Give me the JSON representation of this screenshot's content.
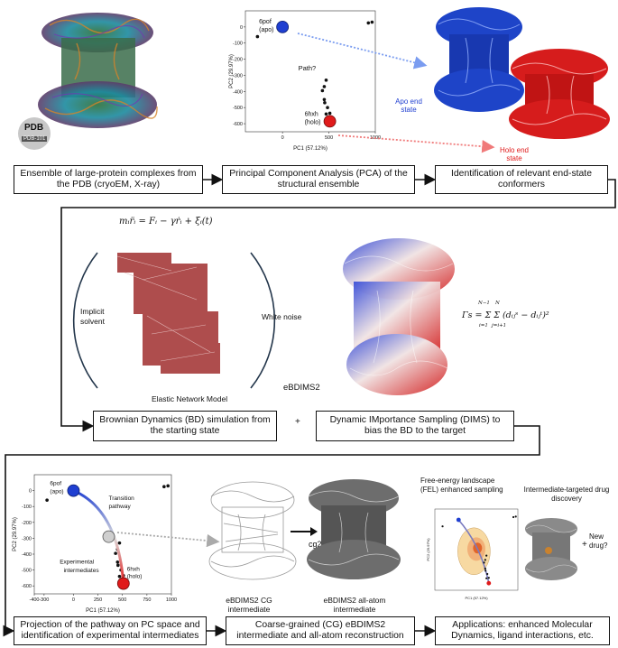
{
  "row1": {
    "box1": "Ensemble of large-protein complexes from the PDB (cryoEM, X-ray)",
    "box2": "Principal Component Analysis (PCA) of the structural ensemble",
    "box3": "Identification of relevant end-state conformers",
    "pdb_logo_top": "PDB",
    "pdb_logo_bottom": "PDB-101",
    "pca_xlabel": "PC1 (57.12%)",
    "pca_ylabel": "PC2 (29.97%)",
    "apo_label": "6pof (apo)",
    "holo_label": "6hxh (holo)",
    "path_label": "Path?",
    "apo_end": "Apo end state",
    "holo_end": "Holo end state"
  },
  "row2": {
    "equation1": "mᵢr̈ᵢ = Fᵢ − γṙᵢ + ξᵢ(t)",
    "implicit_solvent": "Implicit solvent",
    "white_noise": "White noise",
    "enm": "Elastic Network Model",
    "ebdims2": "eBDIMS2",
    "gamma_eq": "Γs = Σ Σ (dᵢⱼˢ − dᵢⱼᵗ)²",
    "sum_top1": "N−1",
    "sum_bot1": "i=1",
    "sum_top2": "N",
    "sum_bot2": "j=i+1",
    "box4": "Brownian Dynamics (BD) simulation from the starting state",
    "plus": "+",
    "box5": "Dynamic IMportance Sampling (DIMS) to bias the BD to the target"
  },
  "row3": {
    "apo_label": "6pof (apo)",
    "holo_label": "6hxh (holo)",
    "transition": "Transition pathway",
    "experimental": "Experimental intermediates",
    "xlabel": "PC1 (57.12%)",
    "ylabel": "PC2 (29.97%)",
    "cg_label": "eBDIMS2 CG intermediate",
    "aa_label": "eBDIMS2 all-atom intermediate",
    "cg2all": "cg2all",
    "fel_label": "Free-energy landscape (FEL) enhanced sampling",
    "drug_label": "Intermediate-targeted drug discovery",
    "plus": "+",
    "new_drug": "New drug?",
    "fel_xlabel": "PC1 (57.12%)",
    "fel_ylabel": "PC2 (29.97%)",
    "box6": "Projection of the pathway on PC space and identification of experimental intermediates",
    "box7": "Coarse-grained (CG) eBDIMS2 intermediate and all-atom reconstruction",
    "box8": "Applications: enhanced Molecular Dynamics, ligand interactions, etc."
  },
  "colors": {
    "apo": "#1f3fd1",
    "holo": "#e01b1b",
    "arrow_blue": "#7a9cf0",
    "arrow_red": "#f07a7a"
  },
  "chart_data": [
    {
      "type": "scatter",
      "name_ref": "top PCA",
      "xlabel": "PC1 (57.12%)",
      "ylabel": "PC2 (29.97%)",
      "xlim": [
        -400,
        1000
      ],
      "ylim": [
        -650,
        100
      ],
      "xticks": [
        -500,
        0,
        500,
        1000
      ],
      "yticks": [
        0,
        -100,
        -200,
        -300,
        -400,
        -500,
        -600
      ],
      "points": [
        [
          -270,
          -60
        ],
        [
          925,
          25
        ],
        [
          965,
          30
        ],
        [
          470,
          -330
        ],
        [
          450,
          -370
        ],
        [
          430,
          -395
        ],
        [
          450,
          -450
        ],
        [
          455,
          -470
        ],
        [
          485,
          -500
        ],
        [
          510,
          -535
        ],
        [
          470,
          -540
        ]
      ],
      "apo": [
        0,
        0
      ],
      "holo": [
        510,
        -585
      ]
    },
    {
      "type": "scatter",
      "name_ref": "bottom PCA",
      "xlabel": "PC1 (57.12%)",
      "ylabel": "PC2 (29.97%)",
      "xlim": [
        -400,
        1000
      ],
      "ylim": [
        -650,
        100
      ],
      "xticks": [
        -400,
        -300,
        0,
        250,
        500,
        750,
        1000
      ],
      "xtick_labels": [
        "-400",
        "-300",
        "0",
        "250",
        "500",
        "750",
        "1000"
      ],
      "yticks": [
        0,
        -100,
        -200,
        -300,
        -400,
        -500,
        -600
      ],
      "points": [
        [
          -270,
          -60
        ],
        [
          925,
          25
        ],
        [
          965,
          30
        ],
        [
          470,
          -330
        ],
        [
          450,
          -370
        ],
        [
          430,
          -395
        ],
        [
          450,
          -450
        ],
        [
          455,
          -470
        ],
        [
          485,
          -500
        ],
        [
          510,
          -535
        ],
        [
          470,
          -540
        ]
      ],
      "apo": [
        0,
        0
      ],
      "holo": [
        510,
        -585
      ],
      "intermediate": [
        360,
        -290
      ]
    }
  ]
}
